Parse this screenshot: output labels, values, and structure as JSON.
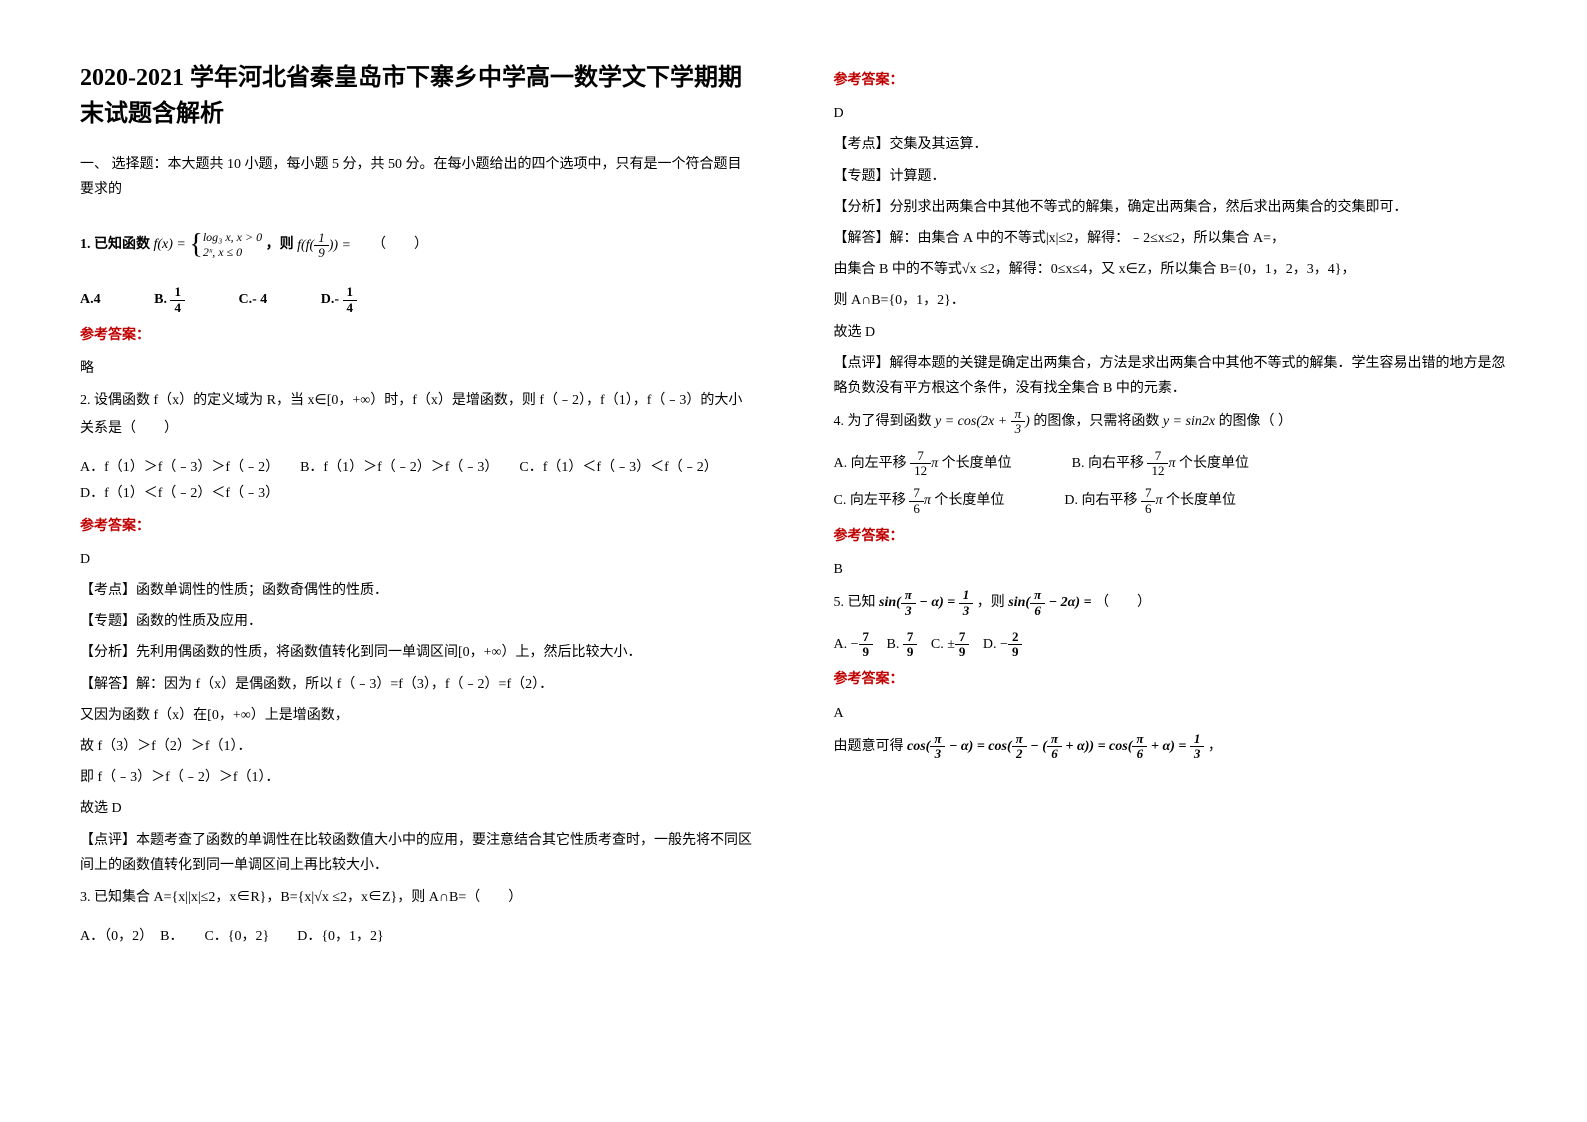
{
  "left": {
    "title": "2020-2021 学年河北省秦皇岛市下寨乡中学高一数学文下学期期末试题含解析",
    "sectionHead": "一、 选择题：本大题共 10 小题，每小题 5 分，共 50 分。在每小题给出的四个选项中，只有是一个符合题目要求的",
    "q1": {
      "prefix": "1. 已知函数",
      "def_top": "log₃ x, x > 0",
      "def_bot": "2ˣ, x ≤ 0",
      "mid": "，则",
      "expr2_a": "f(f(",
      "expr2_b": ")) =",
      "blank": "（　　）",
      "optA": "A.4",
      "optB": "B.",
      "optC": "C.- 4",
      "optD": "D.-"
    },
    "ans1": "参考答案：",
    "ans1v": "略",
    "q2": {
      "line1": "2. 设偶函数 f（x）的定义域为 R，当 x∈[0，+∞）时，f（x）是增函数，则 f（﹣2），f（1），f（﹣3）的大小关系是（　　）",
      "opts": "A．f（1）＞f（﹣3）＞f（﹣2）　　B．f（1）＞f（﹣2）＞f（﹣3）　　C．f（1）＜f（﹣3）＜f（﹣2）　　D．f（1）＜f（﹣2）＜f（﹣3）"
    },
    "ans2": "参考答案：",
    "ans2v": "D",
    "ans2_tag1": "【考点】函数单调性的性质；函数奇偶性的性质．",
    "ans2_tag2": "【专题】函数的性质及应用．",
    "ans2_tag3": "【分析】先利用偶函数的性质，将函数值转化到同一单调区间[0，+∞）上，然后比较大小．",
    "ans2_tag4": "【解答】解：因为 f（x）是偶函数，所以 f（﹣3）=f（3），f（﹣2）=f（2）．",
    "ans2_l1": "又因为函数 f（x）在[0，+∞）上是增函数，",
    "ans2_l2": "故 f（3）＞f（2）＞f（1）．",
    "ans2_l3": "即 f（﹣3）＞f（﹣2）＞f（1）．",
    "ans2_l4": "故选 D",
    "ans2_tag5": "【点评】本题考查了函数的单调性在比较函数值大小中的应用，要注意结合其它性质考查时，一般先将不同区间上的函数值转化到同一单调区间上再比较大小．",
    "q3": {
      "line": "3. 已知集合 A={x||x|≤2，x∈R}，B={x|√x ≤2，x∈Z}，则 A∩B=（　　）",
      "opts": "A．（0，2）　B．　　C．{0，2}　　D．{0，1，2}"
    }
  },
  "right": {
    "ans3": "参考答案：",
    "ans3v": "D",
    "ans3_tag1": "【考点】交集及其运算．",
    "ans3_tag2": "【专题】计算题．",
    "ans3_tag3": "【分析】分别求出两集合中其他不等式的解集，确定出两集合，然后求出两集合的交集即可．",
    "ans3_tag4": "【解答】解：由集合 A 中的不等式|x|≤2，解得：﹣2≤x≤2，所以集合 A=，",
    "ans3_l1": "由集合 B 中的不等式√x ≤2，解得：0≤x≤4，又 x∈Z，所以集合 B={0，1，2，3，4}，",
    "ans3_l2": "则 A∩B={0，1，2}．",
    "ans3_l3": "故选 D",
    "ans3_tag5": "【点评】解得本题的关键是确定出两集合，方法是求出两集合中其他不等式的解集．学生容易出错的地方是忽略负数没有平方根这个条件，没有找全集合 B 中的元素．",
    "q4": {
      "prefix": "4. 为了得到函数",
      "fn1": "y = cos(2x + ",
      "fn1b": ")",
      "mid": "的图像，只需将函数",
      "fn2": "y = sin2x",
      "suffix": "的图像（ ）",
      "optA_pre": "A. 向左平移",
      "optA_suf": "个长度单位",
      "optB_pre": "B. 向右平移",
      "optB_suf": "个长度单位",
      "optC_pre": "C. 向左平移",
      "optC_suf": "个长度单位",
      "optD_pre": "D. 向右平移",
      "optD_suf": "个长度单位"
    },
    "ans4": "参考答案：",
    "ans4v": "B",
    "q5": {
      "prefix": "5. 已知",
      "mid": "，则",
      "suffix": "（　　）",
      "optA": "A.",
      "optB": "B.",
      "optC": "C.",
      "optD": "D."
    },
    "ans5": "参考答案：",
    "ans5v": "A",
    "ans5_l1": "由题意可得"
  }
}
